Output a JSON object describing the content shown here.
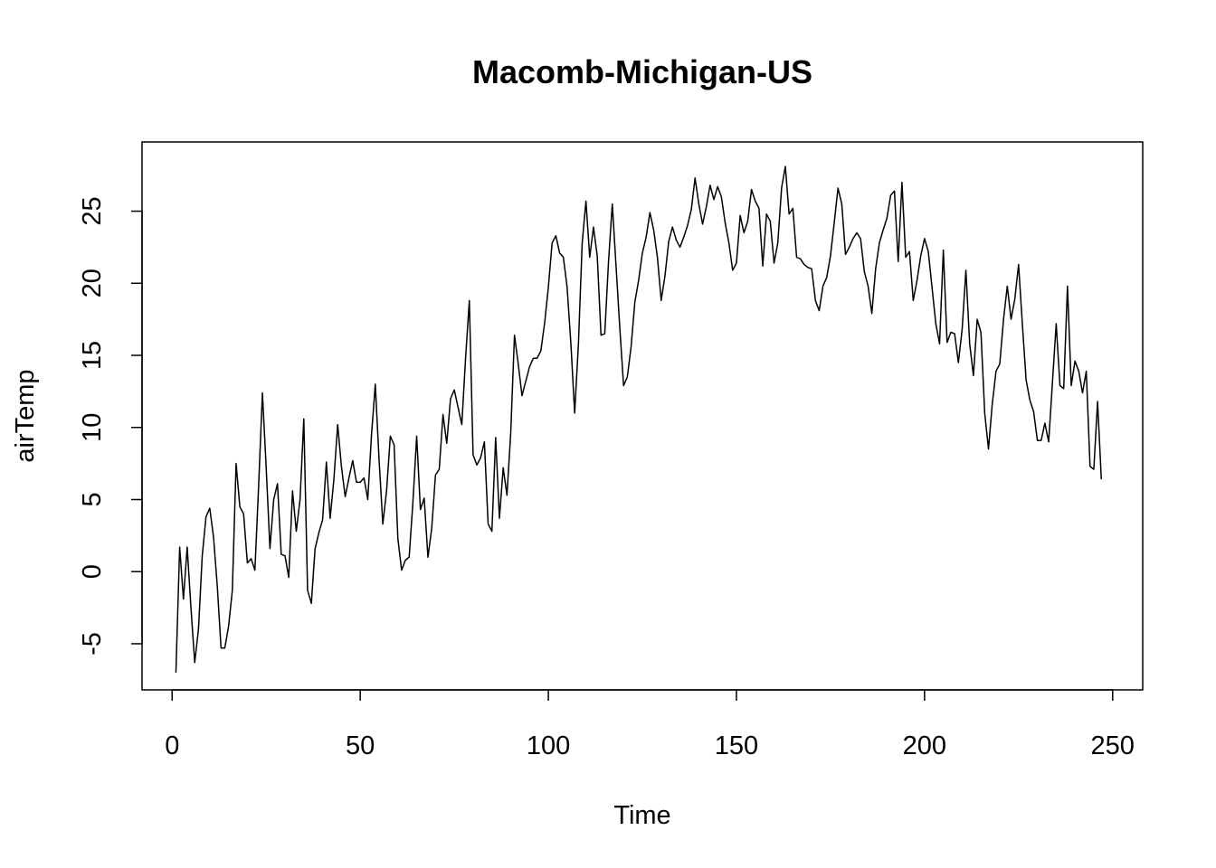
{
  "chart_data": {
    "type": "line",
    "title": "Macomb-Michigan-US",
    "xlabel": "Time",
    "ylabel": "airTemp",
    "xlim": [
      -8,
      258
    ],
    "ylim": [
      -8.2,
      29.8
    ],
    "x_ticks": [
      0,
      50,
      100,
      150,
      200,
      250
    ],
    "y_ticks": [
      -5,
      0,
      5,
      10,
      15,
      20,
      25
    ],
    "x_tick_labels": [
      "0",
      "50",
      "100",
      "150",
      "200",
      "250"
    ],
    "y_tick_labels": [
      "-5",
      "0",
      "5",
      "10",
      "15",
      "20",
      "25"
    ],
    "grid": false,
    "legend": "none",
    "series": [
      {
        "color": "#000000",
        "x_start": 1,
        "values": [
          -7.0,
          1.7,
          -1.9,
          1.7,
          -2.5,
          -6.3,
          -4.0,
          1.1,
          3.8,
          4.4,
          2.4,
          -1.0,
          -5.3,
          -5.3,
          -3.8,
          -1.3,
          7.5,
          4.5,
          4.0,
          0.6,
          0.9,
          0.1,
          6.0,
          12.4,
          7.2,
          1.6,
          5.0,
          6.1,
          1.2,
          1.1,
          -0.4,
          5.6,
          2.8,
          5.0,
          10.6,
          -1.3,
          -2.2,
          1.6,
          2.7,
          3.6,
          7.6,
          3.7,
          6.4,
          10.2,
          7.3,
          5.2,
          6.5,
          7.7,
          6.2,
          6.2,
          6.5,
          5.0,
          9.5,
          13.0,
          7.8,
          3.3,
          5.6,
          9.4,
          8.8,
          2.3,
          0.1,
          0.8,
          1.0,
          4.8,
          9.4,
          4.3,
          5.1,
          1.0,
          3.0,
          6.7,
          7.1,
          10.9,
          8.9,
          12.0,
          12.6,
          11.4,
          10.2,
          14.8,
          18.8,
          8.1,
          7.4,
          7.9,
          9.0,
          3.3,
          2.8,
          9.3,
          3.7,
          7.2,
          5.3,
          9.6,
          16.4,
          14.4,
          12.2,
          13.2,
          14.2,
          14.8,
          14.8,
          15.3,
          17.2,
          19.7,
          22.8,
          23.3,
          22.1,
          21.8,
          19.7,
          15.8,
          11.0,
          15.8,
          22.8,
          25.7,
          21.8,
          23.9,
          21.9,
          16.4,
          16.5,
          21.5,
          25.5,
          21.2,
          16.9,
          12.9,
          13.5,
          15.6,
          18.7,
          20.2,
          22.1,
          23.2,
          24.9,
          23.7,
          21.8,
          18.8,
          20.5,
          22.9,
          23.9,
          23.0,
          22.5,
          23.2,
          24.0,
          25.1,
          27.3,
          25.5,
          24.1,
          25.3,
          26.8,
          25.8,
          26.7,
          26.0,
          24.2,
          22.8,
          20.9,
          21.4,
          24.7,
          23.5,
          24.3,
          26.5,
          25.7,
          25.2,
          21.2,
          24.8,
          24.3,
          21.4,
          22.8,
          26.6,
          28.1,
          24.8,
          25.2,
          21.8,
          21.7,
          21.3,
          21.1,
          21.0,
          18.8,
          18.1,
          19.8,
          20.4,
          21.9,
          24.2,
          26.6,
          25.5,
          22.0,
          22.5,
          23.1,
          23.5,
          23.1,
          20.8,
          19.8,
          17.9,
          21.0,
          22.8,
          23.7,
          24.5,
          26.1,
          26.4,
          21.5,
          27.0,
          21.8,
          22.2,
          18.8,
          20.2,
          21.9,
          23.1,
          22.2,
          19.7,
          17.2,
          15.8,
          22.3,
          15.9,
          16.6,
          16.5,
          14.5,
          16.8,
          20.9,
          15.8,
          13.6,
          17.5,
          16.6,
          11.0,
          8.5,
          11.6,
          13.9,
          14.4,
          17.5,
          19.8,
          17.5,
          18.9,
          21.3,
          17.2,
          13.3,
          11.9,
          11.1,
          9.1,
          9.1,
          10.3,
          9.0,
          13.1,
          17.2,
          12.9,
          12.7,
          19.8,
          12.9,
          14.6,
          13.9,
          12.4,
          13.9,
          7.3,
          7.1,
          11.8,
          6.4
        ]
      }
    ]
  }
}
